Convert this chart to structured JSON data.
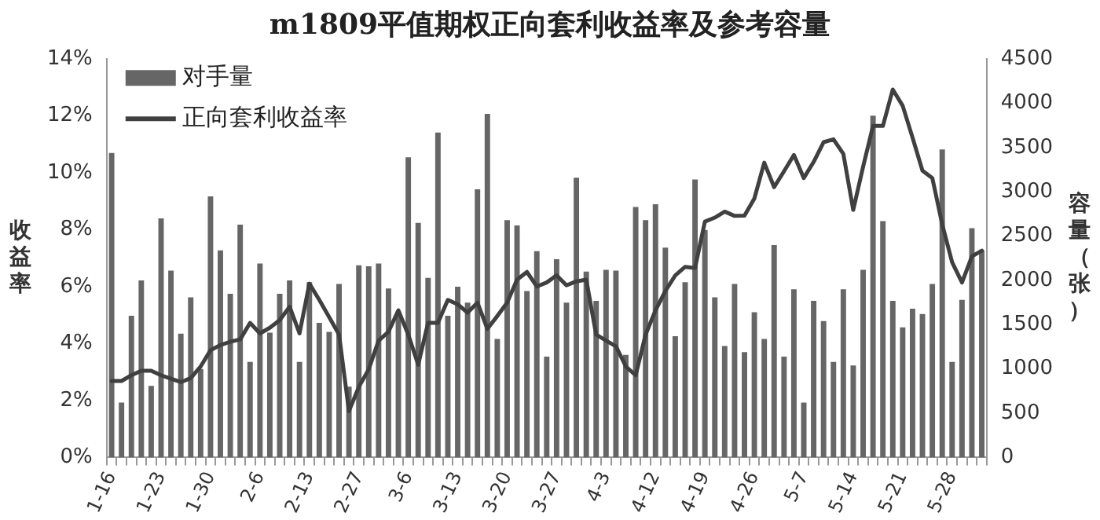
{
  "chart_data": {
    "type": "bar",
    "title": "m1809平值期权正向套利收益率及参考容量",
    "ylabel": "收益率",
    "y2label": "容量（张）",
    "categories": [
      "1-16",
      null,
      null,
      null,
      null,
      "1-23",
      null,
      null,
      null,
      null,
      "1-30",
      null,
      null,
      null,
      null,
      "2-6",
      null,
      null,
      null,
      null,
      "2-13",
      null,
      null,
      null,
      null,
      "2-27",
      null,
      null,
      null,
      null,
      "3-6",
      null,
      null,
      null,
      null,
      "3-13",
      null,
      null,
      null,
      null,
      "3-20",
      null,
      null,
      null,
      null,
      "3-27",
      null,
      null,
      null,
      null,
      "4-3",
      null,
      null,
      null,
      null,
      "4-12",
      null,
      null,
      null,
      null,
      "4-19",
      null,
      null,
      null,
      null,
      "4-26",
      null,
      null,
      null,
      null,
      "5-7",
      null,
      null,
      null,
      null,
      "5-14",
      null,
      null,
      null,
      null,
      "5-21",
      null,
      null,
      null,
      null,
      "5-28",
      null,
      null,
      null
    ],
    "series": [
      {
        "name": "对手量",
        "axis": "y2",
        "color": "#666666",
        "values": [
          3440,
          620,
          1600,
          2000,
          810,
          2700,
          2110,
          1400,
          1810,
          1000,
          2950,
          2340,
          1850,
          2630,
          1080,
          2190,
          1410,
          1850,
          2000,
          1080,
          1980,
          1520,
          1420,
          1960,
          800,
          2170,
          2160,
          2190,
          1910,
          1650,
          3390,
          2650,
          2030,
          3670,
          1600,
          1930,
          1750,
          3030,
          3880,
          1340,
          2680,
          2620,
          1880,
          2330,
          1140,
          2240,
          1750,
          3160,
          2100,
          1770,
          2120,
          2110,
          1160,
          2830,
          2680,
          2860,
          2370,
          1370,
          1980,
          3140,
          2570,
          1810,
          1260,
          1960,
          1190,
          1640,
          1340,
          2400,
          1140,
          1900,
          620,
          1770,
          1540,
          1080,
          1900,
          1040,
          2120,
          3860,
          2670,
          1770,
          1470,
          1680,
          1620,
          1960,
          3480,
          1080,
          1780,
          2590,
          2340
        ]
      },
      {
        "name": "正向套利收益率",
        "type": "line",
        "axis": "y",
        "color": "#404040",
        "values": [
          2.69,
          2.69,
          2.89,
          3.05,
          3.05,
          2.89,
          2.77,
          2.65,
          2.79,
          3.2,
          3.77,
          3.95,
          4.07,
          4.15,
          4.73,
          4.36,
          4.56,
          4.83,
          5.3,
          4.36,
          6.11,
          5.54,
          4.93,
          4.32,
          1.63,
          2.48,
          3.1,
          4.11,
          4.42,
          5.17,
          4.32,
          3.26,
          4.73,
          4.73,
          5.54,
          5.38,
          5.09,
          5.44,
          4.52,
          4.97,
          5.44,
          6.25,
          6.52,
          6.01,
          6.15,
          6.4,
          6.05,
          6.19,
          6.25,
          4.32,
          4.11,
          3.91,
          3.2,
          2.89,
          4.32,
          5.17,
          5.85,
          6.4,
          6.7,
          6.66,
          8.29,
          8.43,
          8.64,
          8.49,
          8.5,
          9.1,
          10.36,
          9.5,
          10.06,
          10.63,
          9.82,
          10.39,
          11.08,
          11.18,
          10.67,
          8.7,
          10.22,
          11.65,
          11.65,
          12.93,
          12.36,
          11.24,
          10.08,
          9.82,
          8.19,
          6.86,
          6.15,
          7.07,
          7.27
        ]
      }
    ],
    "ylim": [
      0,
      14
    ],
    "yticks": [
      {
        "value": 0,
        "label": "0%"
      },
      {
        "value": 2,
        "label": "2%"
      },
      {
        "value": 4,
        "label": "4%"
      },
      {
        "value": 6,
        "label": "6%"
      },
      {
        "value": 8,
        "label": "8%"
      },
      {
        "value": 10,
        "label": "10%"
      },
      {
        "value": 12,
        "label": "12%"
      },
      {
        "value": 14,
        "label": "14%"
      }
    ],
    "y2lim": [
      0,
      4500
    ],
    "y2ticks": [
      0,
      500,
      1000,
      1500,
      2000,
      2500,
      3000,
      3500,
      4000,
      4500
    ],
    "grid": false,
    "legend": "top left",
    "marker": "none",
    "line_style": "solid"
  }
}
